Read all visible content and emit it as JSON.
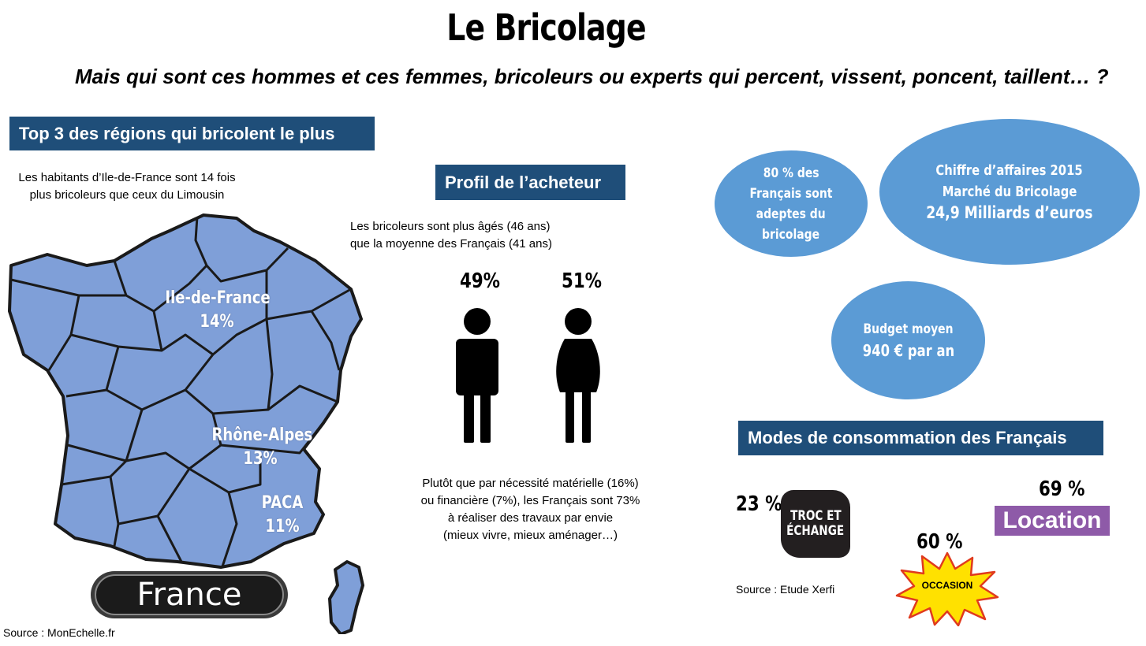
{
  "title": "Le Bricolage",
  "subtitle": "Mais qui sont ces hommes et ces femmes, bricoleurs ou experts qui percent, vissent, poncent, taillent… ?",
  "regions": {
    "heading": "Top 3 des régions qui bricolent le plus",
    "intro_line1": "Les habitants d’Ile-de-France sont 14 fois",
    "intro_line2": "plus bricoleurs que ceux du Limousin",
    "map_badge": "France",
    "labels": [
      {
        "name": "Ile-de-France",
        "percent": "14%"
      },
      {
        "name": "Rhône-Alpes",
        "percent": "13%"
      },
      {
        "name": "PACA",
        "percent": "11%"
      }
    ],
    "source": "Source : MonEchelle.fr",
    "colors": {
      "map_fill": "#7f9fd8",
      "map_border": "#1a1a1a"
    }
  },
  "profile": {
    "heading": "Profil de l’acheteur",
    "age_line1": "Les bricoleurs sont plus âgés (46 ans)",
    "age_line2": "que la moyenne des Français (41 ans)",
    "male_percent": "49%",
    "female_percent": "51%",
    "male_icon": "male-person-icon",
    "female_icon": "female-person-icon",
    "motive_line1": "Plutôt que par nécessité matérielle (16%)",
    "motive_line2": "ou financière (7%), les Français sont 73%",
    "motive_line3": "à réaliser des travaux par envie",
    "motive_line4": "(mieux vivre, mieux aménager…)"
  },
  "bubbles": {
    "adeptes": [
      "80 % des",
      "Français sont",
      "adeptes du",
      "bricolage"
    ],
    "chiffre": [
      "Chiffre d’affaires 2015",
      "Marché du Bricolage",
      "24,9 Milliards d’euros"
    ],
    "budget": [
      "Budget moyen",
      "940 € par an"
    ],
    "color": "#5b9bd5"
  },
  "consumption": {
    "heading": "Modes de consommation des Français",
    "troc_percent": "23 %",
    "troc_badge_line1": "TROC ET",
    "troc_badge_line2": "ÉCHANGE",
    "occasion_percent": "60 %",
    "occasion_badge": "OCCASION",
    "location_percent": "69 %",
    "location_badge": "Location",
    "source": "Source : Etude Xerfi",
    "colors": {
      "location": "#8e5aa8",
      "occasion_star": "#ffe100",
      "occasion_border": "#e03a1e"
    }
  },
  "banner_color": "#1f4e79"
}
